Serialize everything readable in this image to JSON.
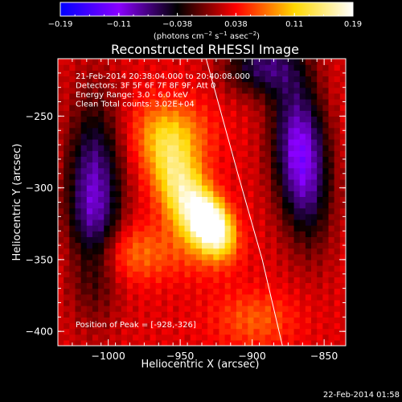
{
  "chart_data": {
    "type": "heatmap",
    "title": "Reconstructed RHESSI Image",
    "xlabel": "Heliocentric X (arcsec)",
    "ylabel": "Heliocentric Y (arcsec)",
    "xlim": [
      -1035,
      -835
    ],
    "ylim": [
      -410,
      -210
    ],
    "x_ticks": [
      -1000,
      -950,
      -900,
      -850
    ],
    "x_tick_labels": [
      "−1000",
      "−950",
      "−900",
      "−850"
    ],
    "y_ticks": [
      -250,
      -300,
      -350,
      -400
    ],
    "y_tick_labels": [
      "−250",
      "−300",
      "−350",
      "−400"
    ],
    "annotations": [
      "21-Feb-2014 20:38:04.000 to 20:40:08.000",
      "Detectors: 3F 5F 6F 7F 8F 9F, Att 0",
      "Energy Range: 3.0 - 6.0 keV",
      "Clean     Total counts: 3.02E+04"
    ],
    "peak_label": "Position of Peak = [-928,-326]",
    "peak": [
      -928,
      -326
    ],
    "colorbar": {
      "range": [
        -0.19,
        0.19
      ],
      "tick_labels": [
        "−0.19",
        "−0.11",
        "−0.038",
        "0.038",
        "0.11",
        "0.19"
      ],
      "unit_html": "(photons cm<tspan dy='-4' font-size='7'>−2</tspan><tspan dy='4'> s</tspan><tspan dy='-4' font-size='7'>−1</tspan><tspan dy='4'> asec</tspan><tspan dy='-4' font-size='7'>−2</tspan><tspan dy='4'>)</tspan>",
      "colors": [
        "#0000ff",
        "#8a00ff",
        "#000000",
        "#ff0000",
        "#ffd800",
        "#ffffff"
      ]
    },
    "sources": [
      {
        "x": -928,
        "y": -326,
        "amp": 0.19,
        "sx": 9,
        "sy": 14,
        "rot": -25
      },
      {
        "x": -948,
        "y": -302,
        "amp": 0.13,
        "sx": 12,
        "sy": 28,
        "rot": -20
      },
      {
        "x": -955,
        "y": -262,
        "amp": 0.06,
        "sx": 18,
        "sy": 16,
        "rot": 0
      },
      {
        "x": -985,
        "y": -345,
        "amp": 0.05,
        "sx": 26,
        "sy": 14,
        "rot": 0
      },
      {
        "x": -898,
        "y": -392,
        "amp": 0.04,
        "sx": 20,
        "sy": 14,
        "rot": 0
      },
      {
        "x": -1010,
        "y": -308,
        "amp": -0.13,
        "sx": 13,
        "sy": 45,
        "rot": 0
      },
      {
        "x": -866,
        "y": -278,
        "amp": -0.15,
        "sx": 13,
        "sy": 38,
        "rot": -5
      },
      {
        "x": -893,
        "y": -215,
        "amp": -0.09,
        "sx": 18,
        "sy": 14,
        "rot": 0
      }
    ],
    "limb_curve": [
      [
        -932,
        -210
      ],
      [
        -910,
        -290
      ],
      [
        -893,
        -350
      ],
      [
        -879,
        -410
      ]
    ],
    "timestamp": "22-Feb-2014 01:58"
  }
}
